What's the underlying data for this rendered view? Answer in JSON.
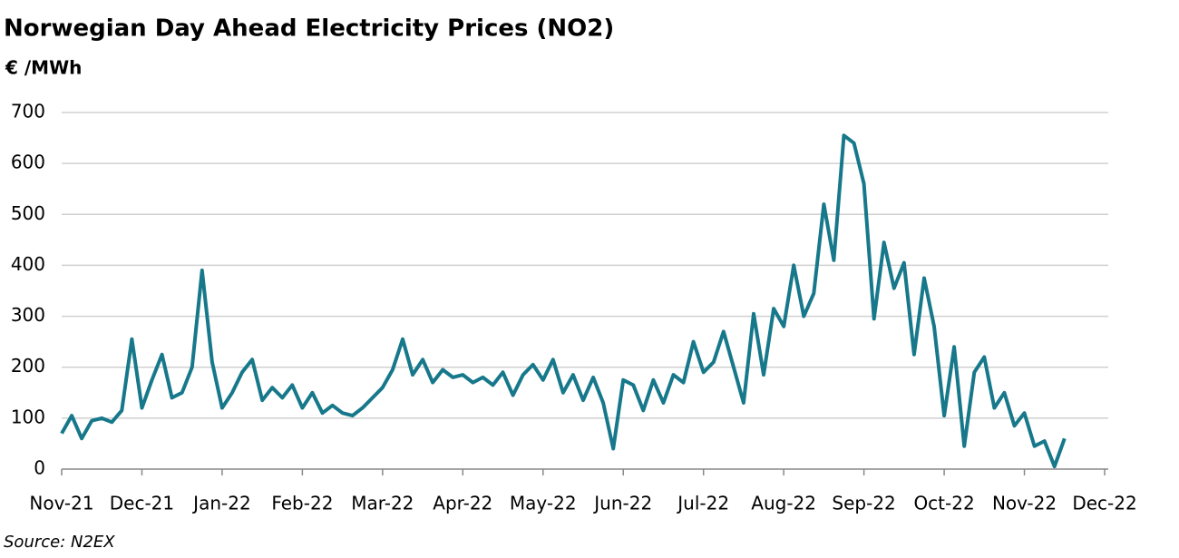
{
  "chart_data": {
    "type": "line",
    "title": "Norwegian Day Ahead Electricity Prices (NO2)",
    "y_label": "€ /MWh",
    "source": "Source: N2EX",
    "categories": [
      "Nov-21",
      null,
      null,
      null,
      null,
      null,
      null,
      null,
      "Dec-21",
      null,
      null,
      null,
      null,
      null,
      null,
      null,
      "Jan-22",
      null,
      null,
      null,
      null,
      null,
      null,
      null,
      "Feb-22",
      null,
      null,
      null,
      null,
      null,
      null,
      null,
      "Mar-22",
      null,
      null,
      null,
      null,
      null,
      null,
      null,
      "Apr-22",
      null,
      null,
      null,
      null,
      null,
      null,
      null,
      "May-22",
      null,
      null,
      null,
      null,
      null,
      null,
      null,
      "Jun-22",
      null,
      null,
      null,
      null,
      null,
      null,
      null,
      "Jul-22",
      null,
      null,
      null,
      null,
      null,
      null,
      null,
      "Aug-22",
      null,
      null,
      null,
      null,
      null,
      null,
      null,
      "Sep-22",
      null,
      null,
      null,
      null,
      null,
      null,
      null,
      "Oct-22",
      null,
      null,
      null,
      null,
      null,
      null,
      null,
      "Nov-22",
      null,
      null,
      null,
      null,
      null,
      null,
      null,
      "Dec-22"
    ],
    "series": [
      {
        "name": "NO2",
        "color": "#16788a",
        "values": [
          70,
          105,
          60,
          95,
          100,
          92,
          115,
          255,
          120,
          175,
          225,
          140,
          150,
          200,
          390,
          210,
          120,
          150,
          190,
          215,
          135,
          160,
          140,
          165,
          120,
          150,
          110,
          125,
          110,
          105,
          120,
          140,
          160,
          195,
          255,
          185,
          215,
          170,
          195,
          180,
          185,
          170,
          180,
          165,
          190,
          145,
          185,
          205,
          175,
          215,
          150,
          185,
          135,
          180,
          130,
          40,
          175,
          165,
          115,
          175,
          130,
          185,
          170,
          250,
          190,
          210,
          270,
          200,
          130,
          305,
          185,
          315,
          280,
          400,
          300,
          345,
          520,
          410,
          655,
          640,
          560,
          295,
          445,
          355,
          405,
          225,
          375,
          280,
          105,
          240,
          45,
          190,
          220,
          120,
          150,
          85,
          110,
          45,
          55,
          5,
          60,
          null,
          null,
          null,
          null
        ]
      }
    ],
    "ylim": [
      0,
      700
    ],
    "yticks": [
      0,
      100,
      200,
      300,
      400,
      500,
      600,
      700
    ],
    "grid": true
  }
}
